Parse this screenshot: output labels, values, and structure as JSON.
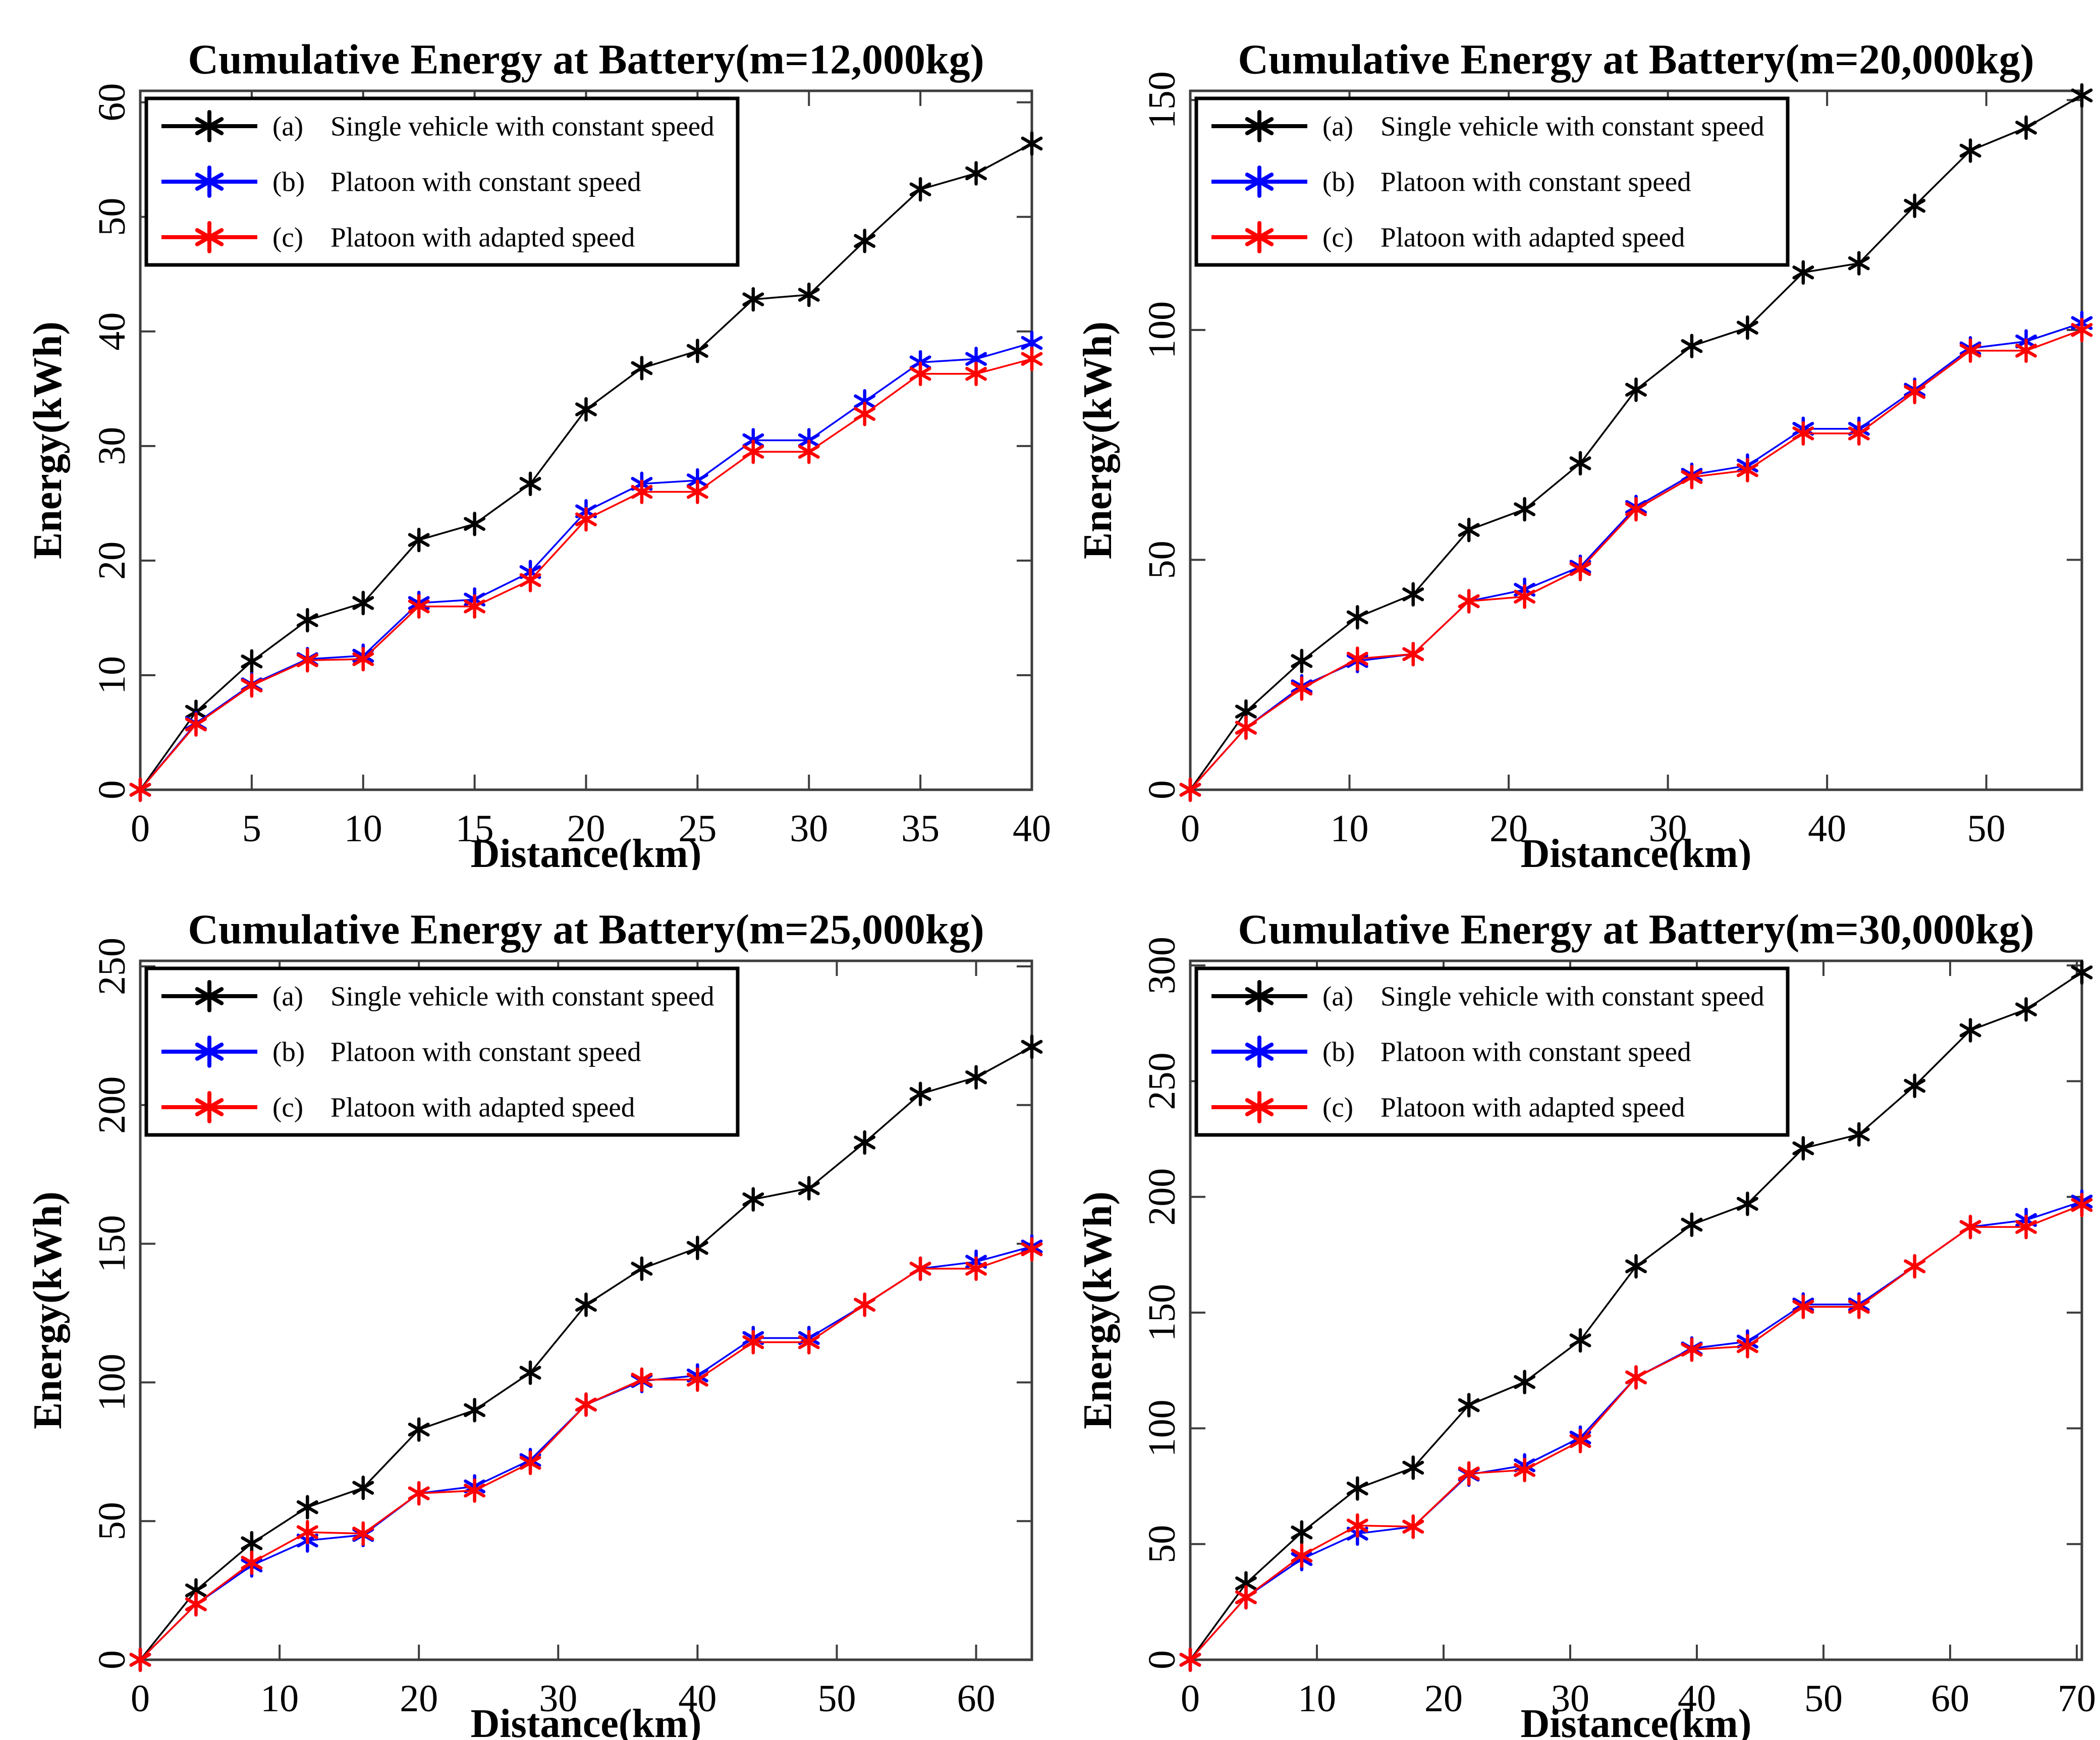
{
  "figure": {
    "background": "#ffffff",
    "layout": "2x2-grid",
    "panel_titles": [
      "Cumulative Energy at Battery(m=12,000kg)",
      "Cumulative Energy at Battery(m=20,000kg)",
      "Cumulative Energy at Battery(m=25,000kg)",
      "Cumulative Energy at Battery(m=30,000kg)"
    ]
  },
  "chart_data": [
    {
      "type": "line",
      "title": "Cumulative Energy at Battery(m=12,000kg)",
      "xlabel": "Distance(km)",
      "ylabel": "Energy(kWh)",
      "xlim": [
        0,
        40
      ],
      "ylim": [
        0,
        61
      ],
      "xticks": [
        0,
        5,
        10,
        15,
        20,
        25,
        30,
        35,
        40
      ],
      "yticks": [
        0,
        10,
        20,
        30,
        40,
        50,
        60
      ],
      "grid": false,
      "legend_position": "top-left",
      "x": [
        0,
        2.5,
        5,
        7.5,
        10,
        12.5,
        15,
        17.5,
        20,
        22.5,
        25,
        27.5,
        30,
        32.5,
        35,
        37.5,
        40
      ],
      "series": [
        {
          "key": "(a)",
          "name": "Single vehicle with constant speed",
          "color": "#000000",
          "values": [
            0,
            6.8,
            11.2,
            14.8,
            16.3,
            21.8,
            23.2,
            26.7,
            33.2,
            36.8,
            38.3,
            42.8,
            43.2,
            47.9,
            52.4,
            53.8,
            56.4
          ]
        },
        {
          "key": "(b)",
          "name": "Platoon with constant speed",
          "color": "#0000ff",
          "values": [
            0,
            5.8,
            9.2,
            11.4,
            11.7,
            16.3,
            16.6,
            19.0,
            24.3,
            26.7,
            27.0,
            30.5,
            30.5,
            33.9,
            37.3,
            37.6,
            39.0
          ]
        },
        {
          "key": "(c)",
          "name": "Platoon with adapted speed",
          "color": "#ff0000",
          "values": [
            0,
            5.7,
            9.1,
            11.3,
            11.4,
            16.0,
            16.0,
            18.3,
            23.6,
            26.0,
            26.0,
            29.5,
            29.5,
            32.8,
            36.3,
            36.3,
            37.6
          ]
        }
      ]
    },
    {
      "type": "line",
      "title": "Cumulative Energy at Battery(m=20,000kg)",
      "xlabel": "Distance(km)",
      "ylabel": "Energy(kWh)",
      "xlim": [
        0,
        56
      ],
      "ylim": [
        0,
        152
      ],
      "xticks": [
        0,
        10,
        20,
        30,
        40,
        50
      ],
      "yticks": [
        0,
        50,
        100,
        150
      ],
      "grid": false,
      "legend_position": "top-left",
      "x": [
        0,
        3.5,
        7,
        10.5,
        14,
        17.5,
        21,
        24.5,
        28,
        31.5,
        35,
        38.5,
        42,
        45.5,
        49,
        52.5,
        56
      ],
      "series": [
        {
          "key": "(a)",
          "name": "Single vehicle with constant speed",
          "color": "#000000",
          "values": [
            0,
            17,
            28,
            37.5,
            42.5,
            56.5,
            61,
            71,
            87,
            96.5,
            100.5,
            112.5,
            114.5,
            127,
            139,
            144,
            151
          ]
        },
        {
          "key": "(b)",
          "name": "Platoon with constant speed",
          "color": "#0000ff",
          "values": [
            0,
            13.5,
            22.5,
            28,
            29.5,
            41,
            43.5,
            48.5,
            61.5,
            68.5,
            70.5,
            78.5,
            78.5,
            87,
            96,
            97.5,
            101.5
          ]
        },
        {
          "key": "(c)",
          "name": "Platoon with adapted speed",
          "color": "#ff0000",
          "values": [
            0,
            13.5,
            22,
            28.5,
            29.5,
            41,
            42,
            48,
            61,
            68,
            69.5,
            77.5,
            77.5,
            86.5,
            95.5,
            95.5,
            100
          ]
        }
      ]
    },
    {
      "type": "line",
      "title": "Cumulative Energy at Battery(m=25,000kg)",
      "xlabel": "Distance(km)",
      "ylabel": "Energy(kWh)",
      "xlim": [
        0,
        64
      ],
      "ylim": [
        0,
        252
      ],
      "xticks": [
        0,
        10,
        20,
        30,
        40,
        50,
        60
      ],
      "yticks": [
        0,
        50,
        100,
        150,
        200,
        250
      ],
      "grid": false,
      "legend_position": "top-left",
      "x": [
        0,
        4,
        8,
        12,
        16,
        20,
        24,
        28,
        32,
        36,
        40,
        44,
        48,
        52,
        56,
        60,
        64
      ],
      "series": [
        {
          "key": "(a)",
          "name": "Single vehicle with constant speed",
          "color": "#000000",
          "values": [
            0,
            25,
            42,
            55,
            62,
            83,
            90,
            103.5,
            128,
            141,
            148.5,
            166,
            170,
            186.5,
            204,
            210,
            221
          ]
        },
        {
          "key": "(b)",
          "name": "Platoon with constant speed",
          "color": "#0000ff",
          "values": [
            0,
            20,
            34,
            43,
            45,
            60,
            62.5,
            72,
            92,
            100.5,
            102.5,
            116,
            116,
            128,
            141,
            143.5,
            149
          ]
        },
        {
          "key": "(c)",
          "name": "Platoon with adapted speed",
          "color": "#ff0000",
          "values": [
            0,
            20,
            35,
            46,
            45.5,
            60,
            61,
            71,
            92,
            101,
            101,
            114.5,
            114.5,
            128,
            141,
            141,
            148
          ]
        }
      ]
    },
    {
      "type": "line",
      "title": "Cumulative Energy at Battery(m=30,000kg)",
      "xlabel": "Distance(km)",
      "ylabel": "Energy(kWh)",
      "xlim": [
        0,
        70.4
      ],
      "ylim": [
        0,
        302
      ],
      "xticks": [
        0,
        10,
        20,
        30,
        40,
        50,
        60,
        70
      ],
      "yticks": [
        0,
        50,
        100,
        150,
        200,
        250,
        300
      ],
      "grid": false,
      "legend_position": "top-left",
      "x": [
        0,
        4.4,
        8.8,
        13.2,
        17.6,
        22,
        26.4,
        30.8,
        35.2,
        39.6,
        44,
        48.4,
        52.8,
        57.2,
        61.6,
        66,
        70.4
      ],
      "series": [
        {
          "key": "(a)",
          "name": "Single vehicle with constant speed",
          "color": "#000000",
          "values": [
            0,
            33,
            55,
            74,
            83,
            110,
            120,
            138,
            170,
            188,
            197,
            221,
            227,
            248,
            272,
            281,
            297
          ]
        },
        {
          "key": "(b)",
          "name": "Platoon with constant speed",
          "color": "#0000ff",
          "values": [
            0,
            27,
            43.5,
            54.5,
            57.5,
            80,
            84,
            96,
            122,
            134.5,
            137.5,
            153.5,
            153.5,
            170,
            187,
            190,
            198
          ]
        },
        {
          "key": "(c)",
          "name": "Platoon with adapted speed",
          "color": "#ff0000",
          "values": [
            0,
            27,
            45,
            58,
            57.5,
            80.5,
            82,
            94.5,
            122,
            134,
            135.5,
            152.5,
            152.5,
            170,
            187,
            187,
            196.5
          ]
        }
      ]
    }
  ]
}
